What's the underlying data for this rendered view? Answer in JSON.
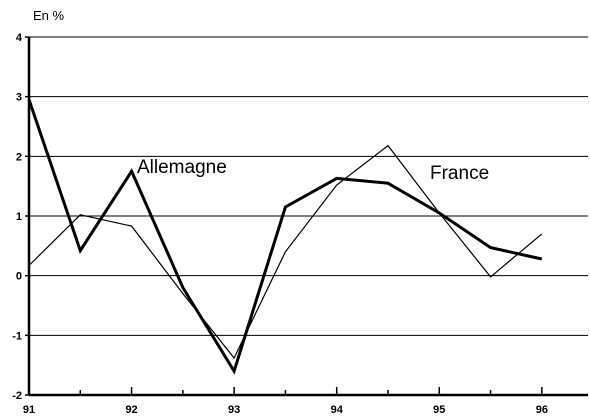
{
  "chart_data": {
    "type": "line",
    "unit_label": "En %",
    "ylim": [
      -2,
      4
    ],
    "y_ticks": [
      "4",
      "3",
      "2",
      "1",
      "0",
      "-1",
      "-2"
    ],
    "x_ticks": [
      "91",
      "92",
      "93",
      "94",
      "95",
      "96"
    ],
    "xlim": [
      91,
      96.45
    ],
    "grid": "horizontal",
    "legend": "inline labels",
    "series": [
      {
        "name": "Allemagne",
        "color": "#000000",
        "line": "thick",
        "x": [
          91,
          91.5,
          92,
          92.5,
          93,
          93.5,
          94,
          94.5,
          95,
          95.5,
          96
        ],
        "y": [
          2.95,
          0.42,
          1.75,
          -0.2,
          -1.6,
          1.15,
          1.63,
          1.55,
          1.05,
          0.47,
          0.28
        ]
      },
      {
        "name": "France",
        "color": "#000000",
        "line": "thin",
        "x": [
          91,
          91.5,
          92,
          92.5,
          93,
          93.5,
          94,
          94.5,
          95,
          95.5,
          96
        ],
        "y": [
          0.17,
          1.02,
          0.83,
          -0.3,
          -1.38,
          0.4,
          1.52,
          2.18,
          1.05,
          -0.02,
          0.7
        ]
      }
    ]
  }
}
